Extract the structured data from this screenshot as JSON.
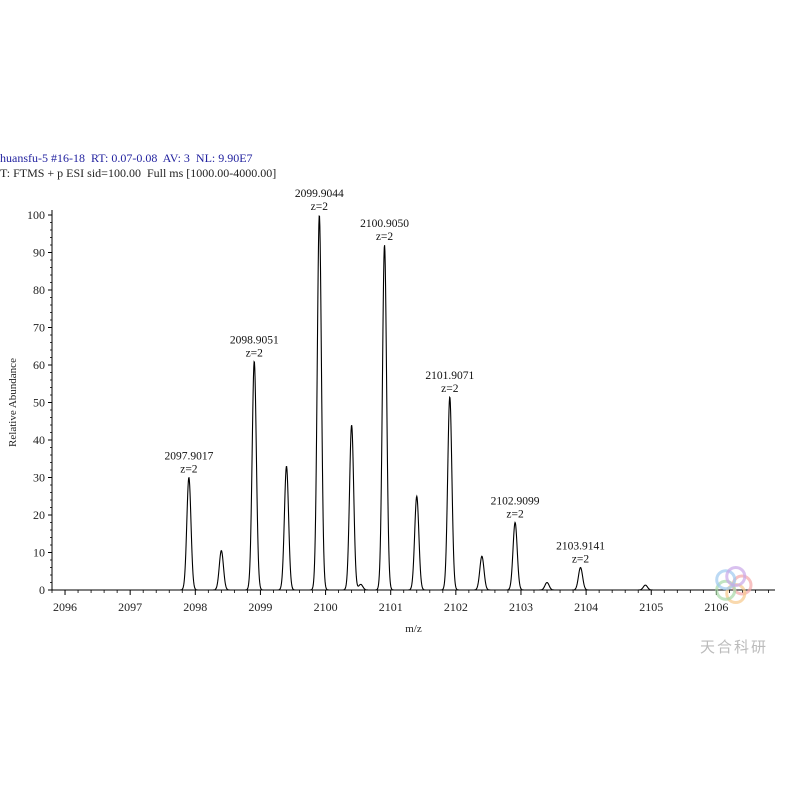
{
  "header": {
    "line1": "huansfu-5 #16-18  RT: 0.07-0.08  AV: 3  NL: 9.90E7",
    "line2": "T: FTMS + p ESI sid=100.00  Full ms [1000.00-4000.00]"
  },
  "watermark": "天合科研",
  "chart_data": {
    "type": "line",
    "title": "",
    "xlabel": "m/z",
    "ylabel": "Relative Abundance",
    "xlim": [
      2095.8,
      2106.9
    ],
    "ylim": [
      0,
      100
    ],
    "xticks": [
      2096,
      2097,
      2098,
      2099,
      2100,
      2101,
      2102,
      2103,
      2104,
      2105,
      2106
    ],
    "yticks": [
      0,
      10,
      20,
      30,
      40,
      50,
      60,
      70,
      80,
      90,
      100
    ],
    "peaks": [
      {
        "mz": 2097.9017,
        "intensity": 30
      },
      {
        "mz": 2098.4,
        "intensity": 10.5
      },
      {
        "mz": 2098.9051,
        "intensity": 61
      },
      {
        "mz": 2099.4,
        "intensity": 33
      },
      {
        "mz": 2099.9044,
        "intensity": 100
      },
      {
        "mz": 2100.4,
        "intensity": 44
      },
      {
        "mz": 2100.54,
        "intensity": 1.5
      },
      {
        "mz": 2100.905,
        "intensity": 92
      },
      {
        "mz": 2101.4,
        "intensity": 25
      },
      {
        "mz": 2101.9071,
        "intensity": 51.5
      },
      {
        "mz": 2102.4,
        "intensity": 9
      },
      {
        "mz": 2102.9099,
        "intensity": 18
      },
      {
        "mz": 2103.4,
        "intensity": 2
      },
      {
        "mz": 2103.9141,
        "intensity": 6
      },
      {
        "mz": 2104.91,
        "intensity": 1.3
      }
    ],
    "annotations": [
      {
        "mz": 2097.9017,
        "intensity": 30,
        "label": "2097.9017",
        "charge": "z=2"
      },
      {
        "mz": 2098.9051,
        "intensity": 61,
        "label": "2098.9051",
        "charge": "z=2"
      },
      {
        "mz": 2099.9044,
        "intensity": 100,
        "label": "2099.9044",
        "charge": "z=2"
      },
      {
        "mz": 2100.905,
        "intensity": 92,
        "label": "2100.9050",
        "charge": "z=2"
      },
      {
        "mz": 2101.9071,
        "intensity": 51.5,
        "label": "2101.9071",
        "charge": "z=2"
      },
      {
        "mz": 2102.9099,
        "intensity": 18,
        "label": "2102.9099",
        "charge": "z=2"
      },
      {
        "mz": 2103.9141,
        "intensity": 6,
        "label": "2103.9141",
        "charge": "z=2"
      }
    ]
  }
}
